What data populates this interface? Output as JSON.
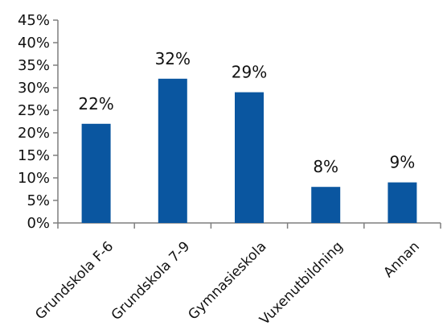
{
  "chart_data": {
    "type": "bar",
    "categories": [
      "Grundskola F-6",
      "Grundskola 7-9",
      "Gymnasieskola",
      "Vuxenutbildning",
      "Annan"
    ],
    "values": [
      22,
      32,
      29,
      8,
      9
    ],
    "data_labels": [
      "22%",
      "32%",
      "29%",
      "8%",
      "9%"
    ],
    "y_ticks": [
      "0%",
      "5%",
      "10%",
      "15%",
      "20%",
      "25%",
      "30%",
      "35%",
      "40%",
      "45%"
    ],
    "ylim": [
      0,
      45
    ],
    "title": "",
    "xlabel": "",
    "ylabel": "",
    "grid": false,
    "legend": "none",
    "bar_color": "#0A56A0",
    "axis_color": "#7f7f7f"
  }
}
